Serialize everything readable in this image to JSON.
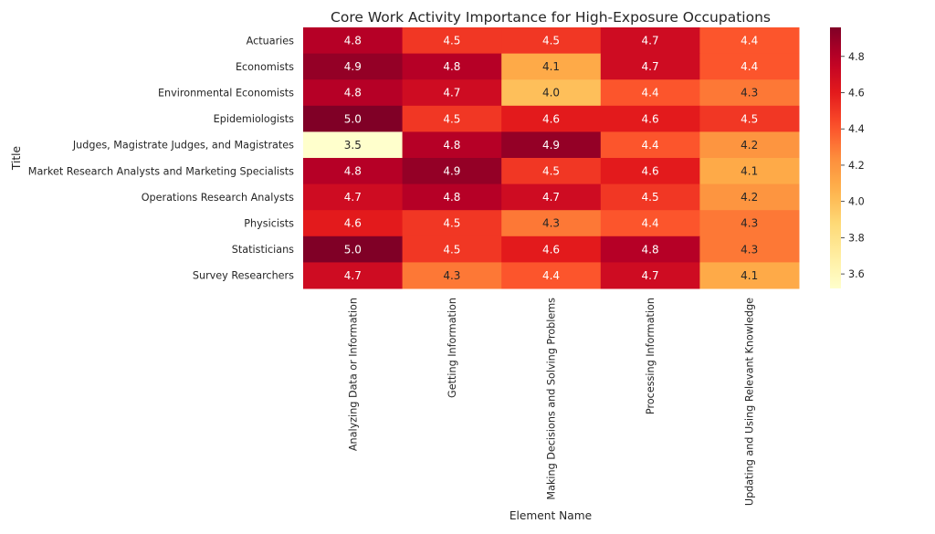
{
  "chart_data": {
    "type": "heatmap",
    "title": "Core Work Activity Importance for High-Exposure Occupations",
    "xlabel": "Element Name",
    "ylabel": "Title",
    "columns": [
      "Analyzing Data or Information",
      "Getting Information",
      "Making Decisions and Solving Problems",
      "Processing Information",
      "Updating and Using Relevant Knowledge"
    ],
    "rows": [
      "Actuaries",
      "Economists",
      "Environmental Economists",
      "Epidemiologists",
      "Judges, Magistrate Judges, and Magistrates",
      "Market Research Analysts and Marketing Specialists",
      "Operations Research Analysts",
      "Physicists",
      "Statisticians",
      "Survey Researchers"
    ],
    "values": [
      [
        4.8,
        4.5,
        4.5,
        4.7,
        4.4
      ],
      [
        4.9,
        4.8,
        4.1,
        4.7,
        4.4
      ],
      [
        4.8,
        4.7,
        4.0,
        4.4,
        4.3
      ],
      [
        5.0,
        4.5,
        4.6,
        4.6,
        4.5
      ],
      [
        3.5,
        4.8,
        4.9,
        4.4,
        4.2
      ],
      [
        4.8,
        4.9,
        4.5,
        4.6,
        4.1
      ],
      [
        4.7,
        4.8,
        4.7,
        4.5,
        4.2
      ],
      [
        4.6,
        4.5,
        4.3,
        4.4,
        4.3
      ],
      [
        5.0,
        4.5,
        4.6,
        4.8,
        4.3
      ],
      [
        4.7,
        4.3,
        4.4,
        4.7,
        4.1
      ]
    ],
    "colormap": "YlOrRd",
    "colorbar": {
      "range": [
        3.52,
        4.96
      ],
      "ticks": [
        3.6,
        3.8,
        4.0,
        4.2,
        4.4,
        4.6,
        4.8
      ],
      "tick_labels": [
        "3.6",
        "3.8",
        "4.0",
        "4.2",
        "4.4",
        "4.6",
        "4.8"
      ]
    },
    "annotate": true,
    "grid": false
  }
}
